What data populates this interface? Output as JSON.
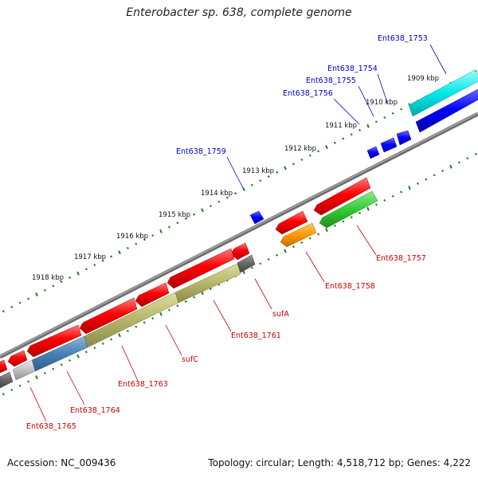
{
  "title": "Enterobacter sp. 638, complete genome",
  "footer": {
    "accession": "Accession: NC_009436",
    "summary": "Topology: circular; Length: 4,518,712 bp; Genes: 4,222"
  },
  "colors": {
    "backbone": "#808080",
    "tick": "#1f7f1f",
    "label_forward": "#0000cc",
    "label_reverse": "#cc0000",
    "leader": "#0000cc",
    "leader_reverse": "#cc0000"
  },
  "scale_labels": [
    "1909 kbp",
    "1910 kbp",
    "1911 kbp",
    "1912 kbp",
    "1913 kbp",
    "1914 kbp",
    "1915 kbp",
    "1916 kbp",
    "1917 kbp",
    "1918 kbp"
  ],
  "genes": [
    {
      "label": "Ent638_1753",
      "strand": "forward",
      "color": "#00e5e5"
    },
    {
      "label": "Ent638_1754",
      "strand": "forward",
      "color": "#0000ff"
    },
    {
      "label": "Ent638_1755",
      "strand": "forward",
      "color": "#0000ff"
    },
    {
      "label": "Ent638_1756",
      "strand": "forward",
      "color": "#0000ff"
    },
    {
      "label": "Ent638_1757",
      "strand": "reverse",
      "color": "#33cc33"
    },
    {
      "label": "Ent638_1758",
      "strand": "reverse",
      "color": "#ff9900"
    },
    {
      "label": "Ent638_1759",
      "strand": "forward",
      "color": "#0000ff"
    },
    {
      "label": "sufA",
      "strand": "reverse",
      "color": "#666666"
    },
    {
      "label": "Ent638_1761",
      "strand": "reverse",
      "color": "#666666"
    },
    {
      "label": "sufC",
      "strand": "reverse",
      "color": "#b5b56a"
    },
    {
      "label": "Ent638_1763",
      "strand": "reverse",
      "color": "#b5b56a"
    },
    {
      "label": "Ent638_1764",
      "strand": "reverse",
      "color": "#4682b4"
    },
    {
      "label": "Ent638_1765",
      "strand": "reverse",
      "color": "#c0c0c0"
    }
  ]
}
